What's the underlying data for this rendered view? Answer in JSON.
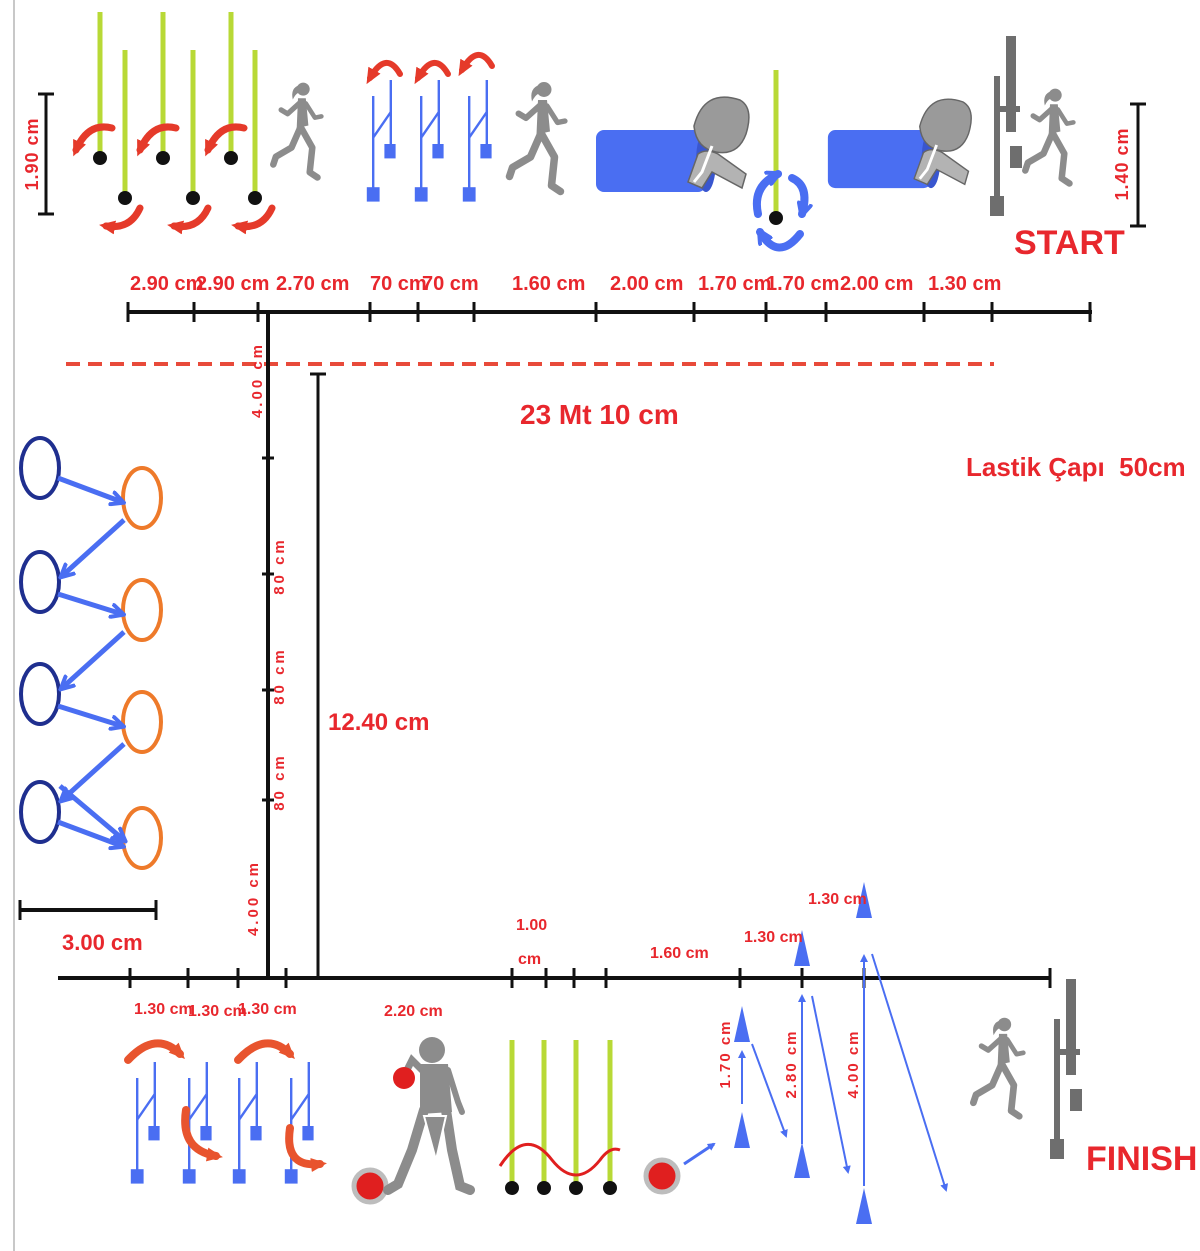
{
  "start_label": "START",
  "finish_label": "FINISH",
  "colors": {
    "label": "#e8272d",
    "line": "#111111",
    "hurdle_blue": "#4a6ef2",
    "pole_green": "#b8d936",
    "tire_dark": "#1f2f8f",
    "tire_orange": "#ee7a2a",
    "figure_gray": "#8c8c8c",
    "arrow_red": "#e53a2a",
    "dashed_red": "#e84a3a"
  },
  "icons": [
    "runner-icon",
    "slalom-pole-icon",
    "mini-hurdle-icon",
    "crawl-tunnel-icon",
    "tire-icon",
    "cone-icon",
    "ball-icon",
    "thrower-icon",
    "start-finish-post-icon"
  ],
  "top_height_label": "1.90 cm",
  "top_right_height_label": "1.40 cm",
  "top_segments": [
    "2.90 cm",
    "2.90 cm",
    "2.70 cm",
    "70 cm",
    "70 cm",
    "1.60 cm",
    "2.00 cm",
    "1.70 cm",
    "1.70 cm",
    "2.00 cm",
    "1.30 cm"
  ],
  "total_length_label": "23 Mt 10 cm",
  "tire_diameter_label": "Lastik Çapı  50cm",
  "vertical_segments": [
    "4.00 cm",
    "80 cm",
    "80 cm",
    "80 cm",
    "4.00 cm"
  ],
  "vertical_total_label": "12.40 cm",
  "tire_zone_label": "3.00 cm",
  "bottom_segments": [
    "1.30 cm",
    "1.30 cm",
    "1.30 cm",
    "2.20 cm"
  ],
  "bottom_segment_1_00": [
    "1.00",
    "cm"
  ],
  "bottom_segment_1_60": "1.60 cm",
  "cone_spacing_labels": [
    "1.30 cm",
    "1.30 cm"
  ],
  "cone_vertical_labels": [
    "1.70 cm",
    "2.80 cm",
    "4.00 cm"
  ]
}
